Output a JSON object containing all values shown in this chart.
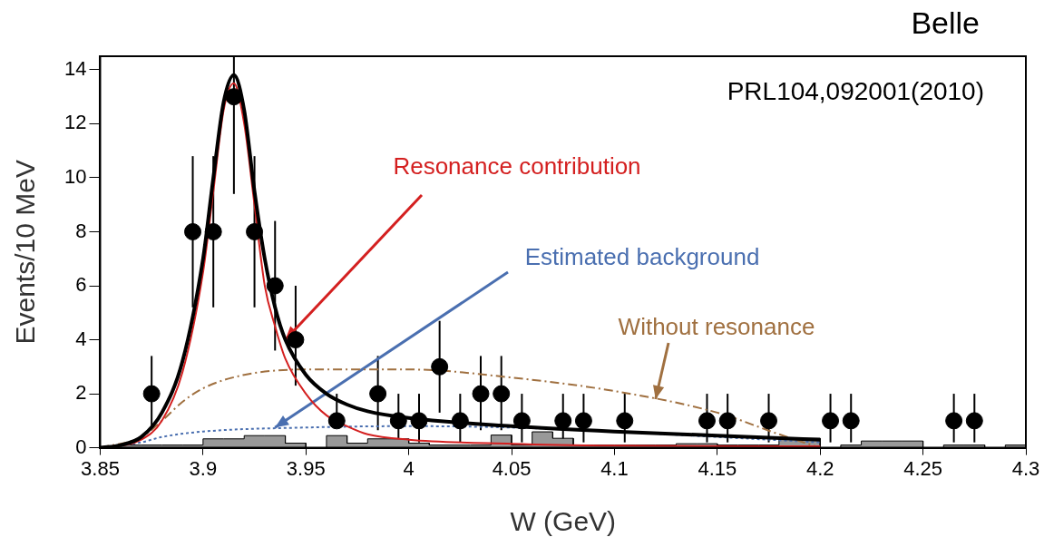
{
  "chart_data": {
    "type": "scatter",
    "xlabel": "W (GeV)",
    "ylabel": "Events/10 MeV",
    "xlim": [
      3.85,
      4.3
    ],
    "xticks": [
      3.85,
      3.9,
      3.95,
      4,
      4.05,
      4.1,
      4.15,
      4.2,
      4.25,
      4.3
    ],
    "ylim": [
      0,
      14.5
    ],
    "yticks": [
      0,
      2,
      4,
      6,
      8,
      10,
      12,
      14
    ],
    "grid": false,
    "legend": false,
    "annotations": [
      "Belle",
      "PRL104,092001(2010)",
      {
        "text": "Resonance contribution",
        "x": 3.94,
        "y": 4
      },
      {
        "text": "Estimated background",
        "x": 3.935,
        "y": 0.75
      },
      {
        "text": "Without resonance",
        "x": 4.12,
        "y": 1.8
      }
    ],
    "series": [
      {
        "type": "histogram",
        "color": "#999999",
        "bins": [
          3.85,
          3.86,
          3.87,
          3.88,
          3.89,
          3.9,
          3.91,
          3.92,
          3.93,
          3.94,
          3.95,
          3.96,
          3.97,
          3.98,
          3.99,
          4,
          4.01,
          4.02,
          4.03,
          4.04,
          4.05,
          4.06,
          4.07,
          4.08,
          4.09,
          4.1,
          4.11,
          4.12,
          4.13,
          4.14,
          4.15,
          4.16,
          4.17,
          4.18,
          4.19,
          4.2,
          4.21,
          4.22,
          4.23,
          4.24,
          4.25,
          4.26,
          4.27,
          4.28,
          4.29,
          4.3
        ],
        "values": [
          0,
          0.1,
          0.1,
          0.1,
          0.1,
          0.33,
          0.33,
          0.45,
          0.45,
          0.17,
          0,
          0.45,
          0.17,
          0.33,
          0.33,
          0.17,
          0.1,
          0.1,
          0.1,
          0.47,
          0.1,
          0.59,
          0.35,
          0.1,
          0.1,
          0.1,
          0.1,
          0.1,
          0.15,
          0.15,
          0.1,
          0.1,
          0.1,
          0.35,
          0.35,
          0,
          0.1,
          0.25,
          0.25,
          0.25,
          0,
          0.1,
          0.1,
          0,
          0.1
        ]
      },
      {
        "color": "#000000",
        "marker": "circle",
        "x": [
          3.875,
          3.895,
          3.905,
          3.915,
          3.925,
          3.935,
          3.945,
          3.965,
          3.985,
          3.995,
          4.005,
          4.015,
          4.025,
          4.035,
          4.045,
          4.055,
          4.075,
          4.085,
          4.105,
          4.145,
          4.155,
          4.175,
          4.205,
          4.215,
          4.265,
          4.275
        ],
        "values": [
          2,
          8,
          8,
          13,
          8,
          6,
          4,
          1,
          2,
          1,
          1,
          3,
          1,
          2,
          2,
          1,
          1,
          1,
          1,
          1,
          1,
          1,
          1,
          1,
          1,
          1
        ],
        "errors": [
          [
            0.65,
            3.4
          ],
          [
            5.2,
            10.8
          ],
          [
            5.2,
            10.8
          ],
          [
            9.4,
            14.5
          ],
          [
            5.2,
            10.8
          ],
          [
            3.6,
            8.4
          ],
          [
            2.3,
            6
          ],
          [
            1,
            2
          ],
          [
            0.65,
            3.4
          ],
          [
            0.2,
            2
          ],
          [
            0.2,
            2
          ],
          [
            1.3,
            4.7
          ],
          [
            0.2,
            2
          ],
          [
            0.65,
            3.4
          ],
          [
            0.65,
            3.4
          ],
          [
            0.2,
            2
          ],
          [
            0.2,
            2
          ],
          [
            0.2,
            2
          ],
          [
            0.2,
            2
          ],
          [
            0.2,
            2
          ],
          [
            0.2,
            2
          ],
          [
            0.2,
            2
          ],
          [
            0.2,
            2
          ],
          [
            0.2,
            2
          ],
          [
            0.2,
            2
          ],
          [
            0.2,
            2
          ]
        ]
      },
      {
        "type": "line",
        "color": "#000000",
        "line_style": "solid",
        "x": [
          3.85,
          3.86,
          3.87,
          3.88,
          3.89,
          3.9,
          3.905,
          3.91,
          3.915,
          3.92,
          3.925,
          3.93,
          3.935,
          3.94,
          3.95,
          3.96,
          3.97,
          3.98,
          4,
          4.05,
          4.1,
          4.15,
          4.2
        ],
        "values": [
          0,
          0.1,
          0.4,
          1.3,
          3.2,
          7,
          10,
          12.8,
          13.8,
          12.5,
          9.5,
          7,
          5.2,
          4,
          2.7,
          2,
          1.6,
          1.35,
          1.1,
          0.8,
          0.6,
          0.45,
          0.3
        ]
      },
      {
        "type": "line",
        "color": "#d42020",
        "line_style": "solid",
        "x": [
          3.85,
          3.87,
          3.88,
          3.89,
          3.9,
          3.905,
          3.91,
          3.915,
          3.92,
          3.925,
          3.93,
          3.935,
          3.94,
          3.95,
          3.96,
          3.97,
          3.98,
          4,
          4.05,
          4.1,
          4.2
        ],
        "values": [
          0,
          0.3,
          1,
          2.8,
          6.5,
          9.5,
          12.5,
          13.5,
          12,
          9,
          6,
          4.5,
          3.3,
          2,
          1.2,
          0.8,
          0.5,
          0.3,
          0.15,
          0.08,
          0.05
        ]
      },
      {
        "type": "line",
        "color": "#a07040",
        "line_style": "dashed",
        "x": [
          3.85,
          3.87,
          3.88,
          3.89,
          3.9,
          3.92,
          3.95,
          4,
          4.05,
          4.1,
          4.15,
          4.18,
          4.2
        ],
        "values": [
          0,
          0.4,
          1,
          1.7,
          2.2,
          2.7,
          2.9,
          2.9,
          2.6,
          2.1,
          1.3,
          0.5,
          0
        ]
      },
      {
        "type": "line",
        "color": "#4a6fb0",
        "line_style": "dotted",
        "x": [
          3.85,
          3.87,
          3.88,
          3.9,
          3.95,
          4,
          4.05,
          4.1,
          4.15,
          4.2
        ],
        "values": [
          0,
          0.2,
          0.4,
          0.6,
          0.75,
          0.8,
          0.75,
          0.6,
          0.4,
          0.2
        ]
      }
    ]
  }
}
